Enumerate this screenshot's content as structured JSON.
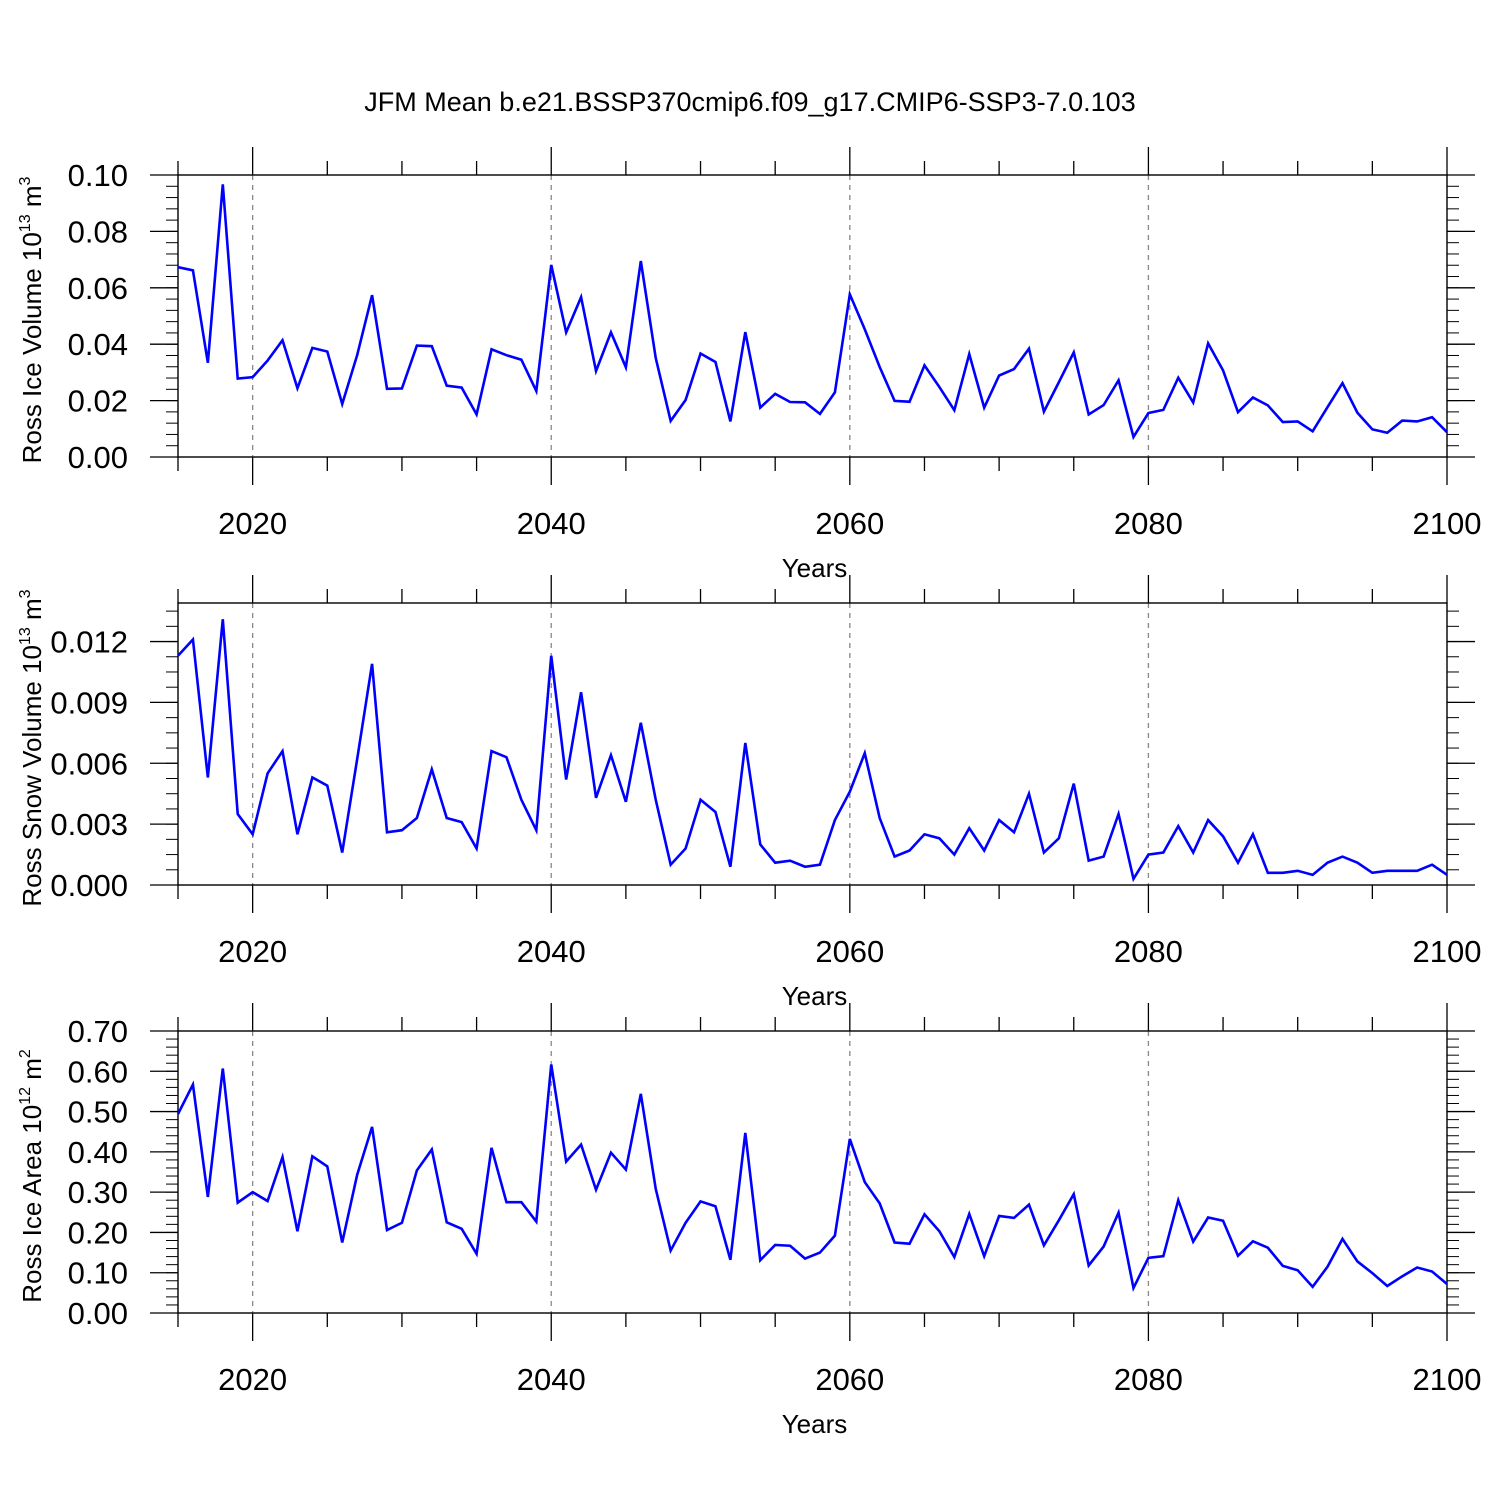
{
  "title": "JFM Mean b.e21.BSSP370cmip6.f09_g17.CMIP6-SSP3-7.0.103",
  "chart_data": [
    {
      "type": "line",
      "ylabel": {
        "main": "Ross Ice Volume 10",
        "exp": "13",
        "unit": " m",
        "unit_exp": "3"
      },
      "xlabel": "Years",
      "xlim": [
        2015,
        2100
      ],
      "ylim": [
        0.0,
        0.1
      ],
      "yticks": [
        "0.00",
        "0.02",
        "0.04",
        "0.06",
        "0.08",
        "0.10"
      ],
      "xticks": [
        "2020",
        "2040",
        "2060",
        "2080",
        "2100"
      ],
      "series": [
        {
          "color": "#0000ff",
          "x_start": 2015,
          "values": [
            0.0673,
            0.0662,
            0.0334,
            0.0967,
            0.0278,
            0.0283,
            0.0342,
            0.0414,
            0.0244,
            0.0387,
            0.0374,
            0.0188,
            0.0361,
            0.0574,
            0.0242,
            0.0243,
            0.0395,
            0.0393,
            0.0253,
            0.0246,
            0.0151,
            0.0382,
            0.0361,
            0.0345,
            0.0234,
            0.0681,
            0.0442,
            0.0567,
            0.0305,
            0.0442,
            0.0318,
            0.0695,
            0.0351,
            0.0128,
            0.0202,
            0.0367,
            0.0337,
            0.0126,
            0.0443,
            0.0175,
            0.0224,
            0.0195,
            0.0194,
            0.0153,
            0.0229,
            0.0577,
            0.0453,
            0.0319,
            0.0199,
            0.0196,
            0.0325,
            0.0248,
            0.0166,
            0.0365,
            0.0175,
            0.0289,
            0.0312,
            0.0384,
            0.0161,
            0.0265,
            0.0371,
            0.0151,
            0.0184,
            0.0272,
            0.0071,
            0.0156,
            0.0167,
            0.0281,
            0.0193,
            0.0403,
            0.0307,
            0.0159,
            0.0211,
            0.0183,
            0.0124,
            0.0126,
            0.0091,
            0.0177,
            0.0262,
            0.0157,
            0.0098,
            0.0086,
            0.0129,
            0.0126,
            0.0141,
            0.0088
          ]
        }
      ]
    },
    {
      "type": "line",
      "ylabel": {
        "main": "Ross Snow Volume 10",
        "exp": "13",
        "unit": " m",
        "unit_exp": "3"
      },
      "xlabel": "Years",
      "xlim": [
        2015,
        2100
      ],
      "ylim": [
        0.0,
        0.0139
      ],
      "yticks": [
        "0.000",
        "0.003",
        "0.006",
        "0.009",
        "0.012"
      ],
      "ytick_values": [
        0.0,
        0.003,
        0.006,
        0.009,
        0.012
      ],
      "xticks": [
        "2020",
        "2040",
        "2060",
        "2080",
        "2100"
      ],
      "series": [
        {
          "color": "#0000ff",
          "x_start": 2015,
          "values": [
            0.0113,
            0.0121,
            0.0053,
            0.0131,
            0.0035,
            0.0025,
            0.0055,
            0.0066,
            0.0025,
            0.0053,
            0.0049,
            0.0016,
            0.0062,
            0.0109,
            0.0026,
            0.0027,
            0.0033,
            0.0057,
            0.0033,
            0.0031,
            0.0018,
            0.0066,
            0.0063,
            0.0042,
            0.0027,
            0.0113,
            0.0052,
            0.0095,
            0.0043,
            0.0064,
            0.0041,
            0.008,
            0.0042,
            0.001,
            0.0018,
            0.0042,
            0.0036,
            0.0009,
            0.007,
            0.002,
            0.0011,
            0.0012,
            0.0009,
            0.001,
            0.0032,
            0.0046,
            0.0065,
            0.0033,
            0.0014,
            0.0017,
            0.0025,
            0.0023,
            0.0015,
            0.0028,
            0.0017,
            0.0032,
            0.0026,
            0.0045,
            0.0016,
            0.0023,
            0.005,
            0.0012,
            0.0014,
            0.0035,
            0.0003,
            0.0015,
            0.0016,
            0.0029,
            0.0016,
            0.0032,
            0.0024,
            0.0011,
            0.0025,
            0.0006,
            0.0006,
            0.0007,
            0.0005,
            0.0011,
            0.0014,
            0.0011,
            0.0006,
            0.0007,
            0.0007,
            0.0007,
            0.001,
            0.0005
          ]
        }
      ]
    },
    {
      "type": "line",
      "ylabel": {
        "main": "Ross Ice Area 10",
        "exp": "12",
        "unit": " m",
        "unit_exp": "2"
      },
      "xlabel": "Years",
      "xlim": [
        2015,
        2100
      ],
      "ylim": [
        0.0,
        0.7
      ],
      "yticks": [
        "0.00",
        "0.10",
        "0.20",
        "0.30",
        "0.40",
        "0.50",
        "0.60",
        "0.70"
      ],
      "xticks": [
        "2020",
        "2040",
        "2060",
        "2080",
        "2100"
      ],
      "series": [
        {
          "color": "#0000ff",
          "x_start": 2015,
          "values": [
            0.494,
            0.567,
            0.288,
            0.607,
            0.274,
            0.3,
            0.278,
            0.387,
            0.203,
            0.389,
            0.364,
            0.175,
            0.343,
            0.462,
            0.206,
            0.224,
            0.354,
            0.406,
            0.225,
            0.209,
            0.147,
            0.41,
            0.275,
            0.275,
            0.227,
            0.617,
            0.376,
            0.418,
            0.306,
            0.398,
            0.356,
            0.544,
            0.308,
            0.155,
            0.224,
            0.277,
            0.265,
            0.132,
            0.447,
            0.131,
            0.169,
            0.167,
            0.135,
            0.15,
            0.192,
            0.432,
            0.325,
            0.272,
            0.175,
            0.172,
            0.245,
            0.203,
            0.139,
            0.246,
            0.141,
            0.241,
            0.236,
            0.269,
            0.168,
            0.23,
            0.295,
            0.118,
            0.165,
            0.249,
            0.062,
            0.137,
            0.141,
            0.28,
            0.177,
            0.237,
            0.229,
            0.142,
            0.178,
            0.162,
            0.117,
            0.106,
            0.065,
            0.115,
            0.184,
            0.128,
            0.099,
            0.067,
            0.091,
            0.113,
            0.103,
            0.072
          ]
        }
      ]
    }
  ]
}
